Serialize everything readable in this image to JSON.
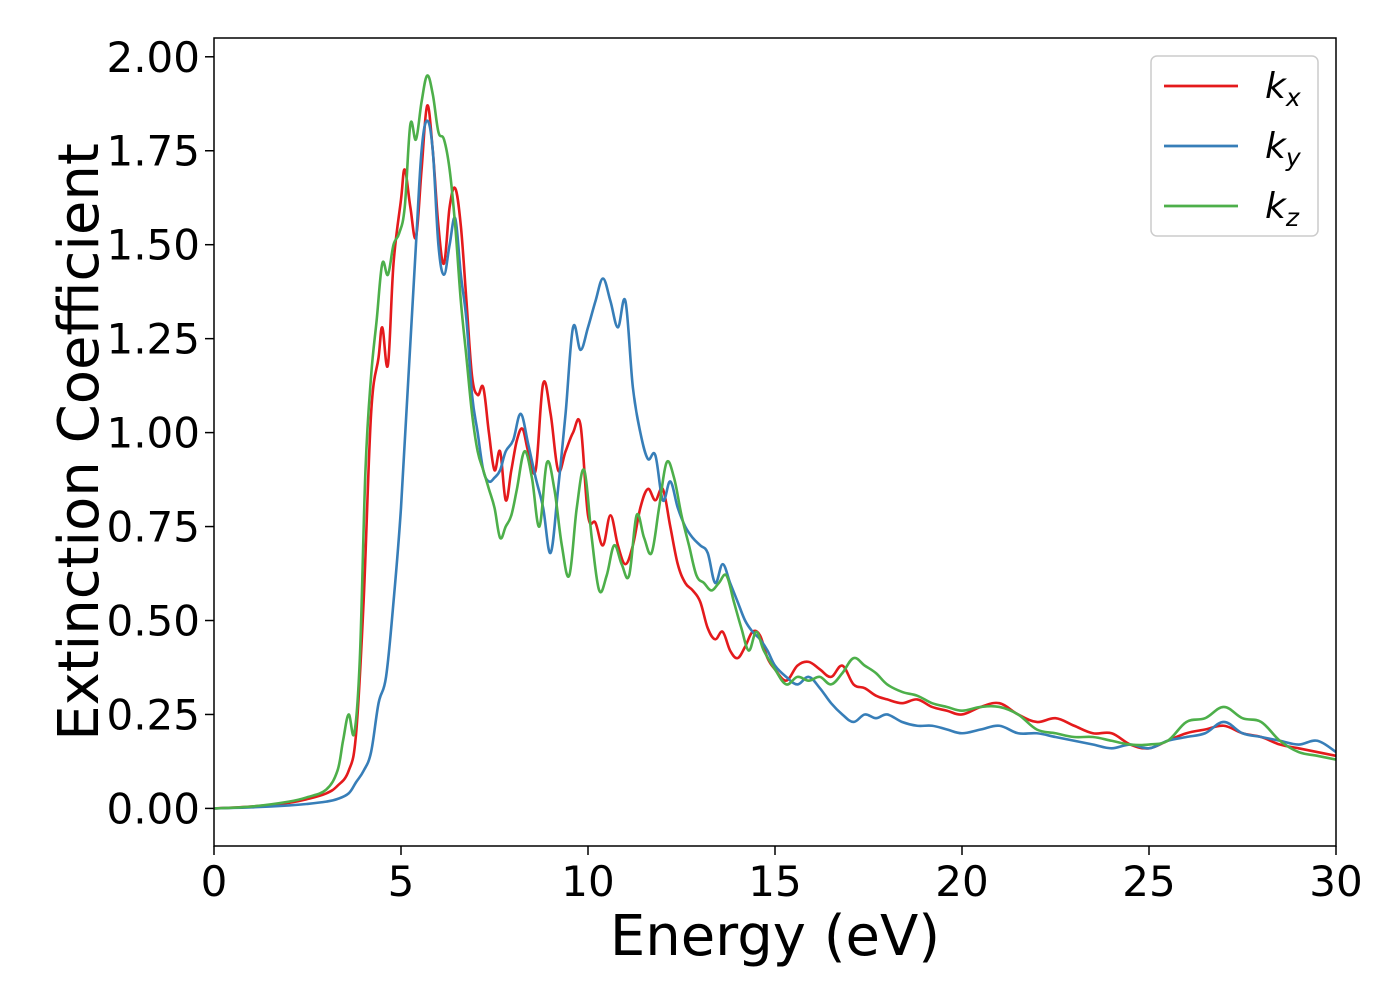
{
  "chart_data": {
    "type": "line",
    "title": "",
    "xlabel": "Energy (eV)",
    "ylabel": "Extinction Coefficient",
    "xlim": [
      0,
      30
    ],
    "ylim": [
      -0.1,
      2.05
    ],
    "xticks": [
      0,
      5,
      10,
      15,
      20,
      25,
      30
    ],
    "xtick_labels": [
      "0",
      "5",
      "10",
      "15",
      "20",
      "25",
      "30"
    ],
    "yticks": [
      0.0,
      0.25,
      0.5,
      0.75,
      1.0,
      1.25,
      1.5,
      1.75,
      2.0
    ],
    "ytick_labels": [
      "0.00",
      "0.25",
      "0.50",
      "0.75",
      "1.00",
      "1.25",
      "1.50",
      "1.75",
      "2.00"
    ],
    "grid": false,
    "legend_position": "top-right",
    "series": [
      {
        "name": "k_x",
        "legend_base": "k",
        "legend_sub": "x",
        "color": "#e41a1c",
        "x": [
          0,
          1,
          2,
          2.5,
          3,
          3.3,
          3.6,
          3.8,
          4.0,
          4.2,
          4.4,
          4.5,
          4.65,
          4.8,
          5.0,
          5.1,
          5.25,
          5.4,
          5.55,
          5.7,
          5.85,
          6.0,
          6.15,
          6.3,
          6.45,
          6.6,
          6.75,
          6.9,
          7.05,
          7.2,
          7.35,
          7.5,
          7.65,
          7.8,
          7.95,
          8.1,
          8.25,
          8.4,
          8.6,
          8.8,
          9.0,
          9.2,
          9.4,
          9.6,
          9.8,
          10.0,
          10.2,
          10.4,
          10.6,
          10.8,
          11.0,
          11.2,
          11.4,
          11.6,
          11.8,
          12.0,
          12.2,
          12.4,
          12.6,
          12.8,
          13.0,
          13.2,
          13.4,
          13.6,
          13.8,
          14.0,
          14.2,
          14.4,
          14.6,
          14.8,
          15.0,
          15.3,
          15.6,
          15.9,
          16.2,
          16.5,
          16.8,
          17.1,
          17.4,
          17.7,
          18.0,
          18.4,
          18.8,
          19.2,
          19.6,
          20.0,
          20.5,
          21.0,
          21.5,
          22.0,
          22.5,
          23.0,
          23.5,
          24.0,
          24.5,
          25.0,
          25.5,
          26.0,
          26.5,
          27.0,
          27.5,
          28.0,
          28.5,
          29.0,
          29.5,
          30.0
        ],
        "y": [
          0.0,
          0.005,
          0.015,
          0.025,
          0.04,
          0.06,
          0.1,
          0.2,
          0.55,
          1.05,
          1.2,
          1.28,
          1.18,
          1.45,
          1.62,
          1.7,
          1.6,
          1.52,
          1.7,
          1.87,
          1.75,
          1.55,
          1.45,
          1.6,
          1.65,
          1.55,
          1.35,
          1.15,
          1.1,
          1.12,
          1.0,
          0.9,
          0.95,
          0.82,
          0.9,
          0.98,
          1.01,
          0.95,
          0.9,
          1.13,
          1.05,
          0.9,
          0.95,
          1.0,
          1.02,
          0.78,
          0.76,
          0.7,
          0.78,
          0.7,
          0.65,
          0.7,
          0.8,
          0.85,
          0.82,
          0.85,
          0.75,
          0.65,
          0.6,
          0.58,
          0.55,
          0.48,
          0.45,
          0.47,
          0.42,
          0.4,
          0.43,
          0.47,
          0.46,
          0.4,
          0.37,
          0.34,
          0.38,
          0.39,
          0.37,
          0.35,
          0.38,
          0.33,
          0.32,
          0.3,
          0.29,
          0.28,
          0.29,
          0.27,
          0.26,
          0.25,
          0.27,
          0.28,
          0.25,
          0.23,
          0.24,
          0.22,
          0.2,
          0.2,
          0.17,
          0.16,
          0.18,
          0.2,
          0.21,
          0.22,
          0.2,
          0.19,
          0.17,
          0.16,
          0.15,
          0.14
        ]
      },
      {
        "name": "k_y",
        "legend_base": "k",
        "legend_sub": "y",
        "color": "#377eb8",
        "x": [
          0,
          1,
          2,
          2.5,
          3,
          3.3,
          3.6,
          3.8,
          4.0,
          4.2,
          4.4,
          4.6,
          4.8,
          5.0,
          5.2,
          5.4,
          5.55,
          5.7,
          5.85,
          6.0,
          6.15,
          6.3,
          6.45,
          6.6,
          6.75,
          6.9,
          7.05,
          7.2,
          7.35,
          7.5,
          7.65,
          7.8,
          8.0,
          8.2,
          8.4,
          8.6,
          8.8,
          9.0,
          9.2,
          9.4,
          9.6,
          9.8,
          10.0,
          10.2,
          10.4,
          10.6,
          10.8,
          11.0,
          11.2,
          11.4,
          11.6,
          11.8,
          12.0,
          12.2,
          12.4,
          12.6,
          12.8,
          13.0,
          13.2,
          13.4,
          13.6,
          13.8,
          14.0,
          14.2,
          14.4,
          14.6,
          14.8,
          15.0,
          15.3,
          15.6,
          15.9,
          16.2,
          16.5,
          16.8,
          17.1,
          17.4,
          17.7,
          18.0,
          18.4,
          18.8,
          19.2,
          19.6,
          20.0,
          20.5,
          21.0,
          21.5,
          22.0,
          22.5,
          23.0,
          23.5,
          24.0,
          24.5,
          25.0,
          25.5,
          26.0,
          26.5,
          27.0,
          27.5,
          28.0,
          28.5,
          29.0,
          29.5,
          30.0
        ],
        "y": [
          0.0,
          0.003,
          0.008,
          0.012,
          0.018,
          0.025,
          0.04,
          0.07,
          0.1,
          0.15,
          0.28,
          0.35,
          0.55,
          0.8,
          1.15,
          1.5,
          1.75,
          1.83,
          1.75,
          1.5,
          1.42,
          1.5,
          1.57,
          1.42,
          1.3,
          1.1,
          1.0,
          0.9,
          0.87,
          0.88,
          0.9,
          0.95,
          0.98,
          1.05,
          0.97,
          0.88,
          0.8,
          0.68,
          0.85,
          1.05,
          1.28,
          1.22,
          1.28,
          1.35,
          1.41,
          1.35,
          1.28,
          1.35,
          1.12,
          1.0,
          0.93,
          0.94,
          0.82,
          0.87,
          0.8,
          0.75,
          0.72,
          0.7,
          0.68,
          0.6,
          0.65,
          0.6,
          0.55,
          0.5,
          0.47,
          0.45,
          0.42,
          0.38,
          0.35,
          0.33,
          0.35,
          0.32,
          0.28,
          0.25,
          0.23,
          0.25,
          0.24,
          0.25,
          0.23,
          0.22,
          0.22,
          0.21,
          0.2,
          0.21,
          0.22,
          0.2,
          0.2,
          0.19,
          0.18,
          0.17,
          0.16,
          0.17,
          0.16,
          0.18,
          0.19,
          0.2,
          0.23,
          0.2,
          0.19,
          0.18,
          0.17,
          0.18,
          0.15
        ]
      },
      {
        "name": "k_z",
        "legend_base": "k",
        "legend_sub": "z",
        "color": "#4daf4a",
        "x": [
          0,
          1,
          2,
          2.5,
          3,
          3.3,
          3.45,
          3.6,
          3.75,
          3.9,
          4.05,
          4.2,
          4.35,
          4.5,
          4.65,
          4.8,
          4.95,
          5.1,
          5.25,
          5.4,
          5.55,
          5.7,
          5.85,
          6.0,
          6.15,
          6.3,
          6.45,
          6.6,
          6.75,
          6.9,
          7.05,
          7.2,
          7.35,
          7.5,
          7.65,
          7.8,
          7.95,
          8.1,
          8.3,
          8.5,
          8.7,
          8.9,
          9.1,
          9.3,
          9.5,
          9.7,
          9.9,
          10.1,
          10.3,
          10.5,
          10.7,
          10.9,
          11.1,
          11.3,
          11.5,
          11.7,
          11.9,
          12.1,
          12.3,
          12.5,
          12.7,
          12.9,
          13.1,
          13.3,
          13.5,
          13.7,
          13.9,
          14.1,
          14.3,
          14.5,
          14.7,
          15.0,
          15.3,
          15.6,
          15.9,
          16.2,
          16.5,
          16.8,
          17.1,
          17.4,
          17.7,
          18.0,
          18.4,
          18.8,
          19.2,
          19.6,
          20.0,
          20.5,
          21.0,
          21.5,
          22.0,
          22.5,
          23.0,
          23.5,
          24.0,
          24.5,
          25.0,
          25.5,
          26.0,
          26.5,
          27.0,
          27.5,
          28.0,
          28.5,
          29.0,
          29.5,
          30.0
        ],
        "y": [
          0.0,
          0.005,
          0.018,
          0.03,
          0.05,
          0.1,
          0.18,
          0.25,
          0.2,
          0.4,
          0.9,
          1.15,
          1.3,
          1.45,
          1.42,
          1.5,
          1.53,
          1.6,
          1.82,
          1.78,
          1.88,
          1.95,
          1.9,
          1.8,
          1.78,
          1.7,
          1.55,
          1.35,
          1.2,
          1.05,
          0.95,
          0.9,
          0.85,
          0.8,
          0.72,
          0.75,
          0.78,
          0.85,
          0.95,
          0.88,
          0.75,
          0.92,
          0.85,
          0.7,
          0.62,
          0.8,
          0.9,
          0.72,
          0.58,
          0.62,
          0.7,
          0.65,
          0.62,
          0.78,
          0.72,
          0.68,
          0.8,
          0.92,
          0.88,
          0.78,
          0.7,
          0.62,
          0.6,
          0.58,
          0.6,
          0.62,
          0.55,
          0.48,
          0.42,
          0.47,
          0.42,
          0.37,
          0.33,
          0.35,
          0.34,
          0.35,
          0.33,
          0.36,
          0.4,
          0.38,
          0.36,
          0.33,
          0.31,
          0.3,
          0.28,
          0.27,
          0.26,
          0.27,
          0.27,
          0.25,
          0.21,
          0.2,
          0.19,
          0.19,
          0.18,
          0.17,
          0.17,
          0.18,
          0.23,
          0.24,
          0.27,
          0.24,
          0.23,
          0.18,
          0.15,
          0.14,
          0.13
        ]
      }
    ]
  }
}
